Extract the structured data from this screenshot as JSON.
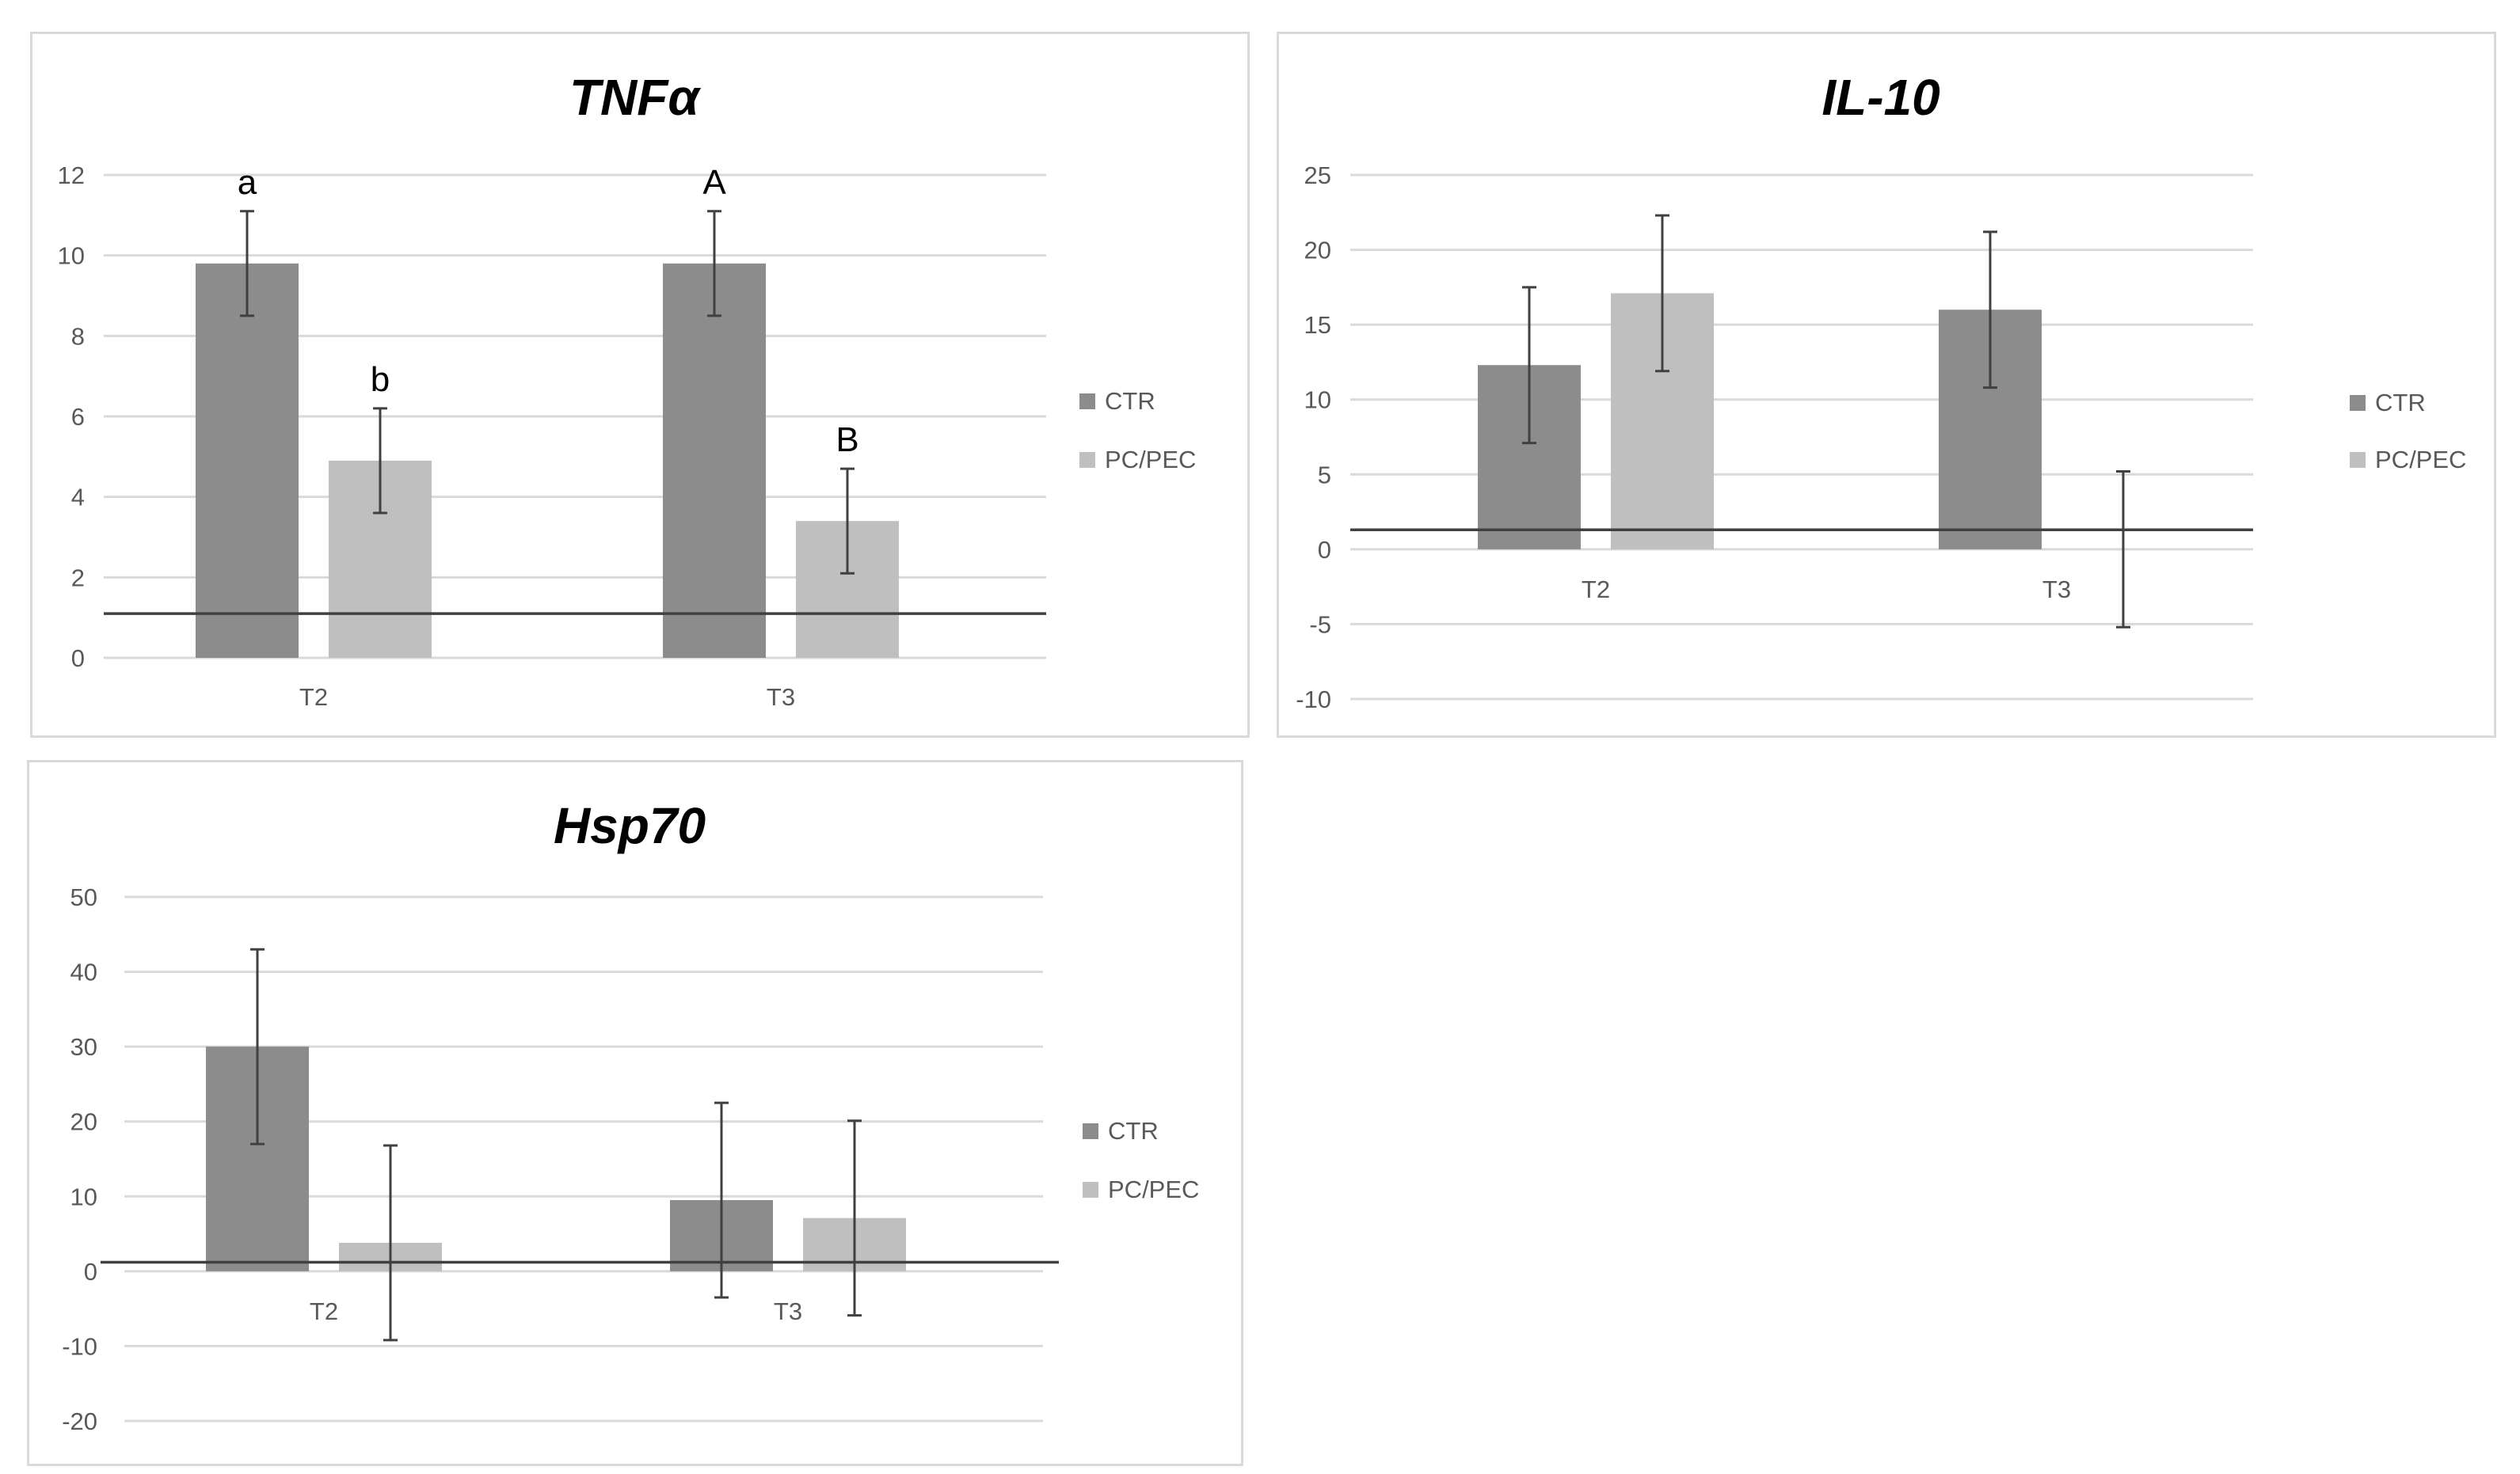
{
  "chart_data": [
    {
      "type": "bar",
      "title": "TNFα",
      "categories": [
        "T2",
        "T3"
      ],
      "series": [
        {
          "name": "CTR",
          "color": "#8c8c8c",
          "values": [
            9.8,
            9.8
          ],
          "errors": [
            1.3,
            1.3
          ]
        },
        {
          "name": "PC/PEC",
          "color": "#bfbfbf",
          "values": [
            4.9,
            3.4
          ],
          "errors": [
            1.3,
            1.3
          ]
        }
      ],
      "annotations": [
        [
          "a",
          "b"
        ],
        [
          "A",
          "B"
        ]
      ],
      "reference_line": 1.1,
      "ylim": [
        0,
        12
      ],
      "yticks": [
        "0",
        "2",
        "4",
        "6",
        "8",
        "10",
        "12"
      ],
      "xlabel": "",
      "ylabel": "",
      "legend": "right"
    },
    {
      "type": "bar",
      "title": "IL-10",
      "categories": [
        "T2",
        "T3"
      ],
      "series": [
        {
          "name": "CTR",
          "color": "#8c8c8c",
          "values": [
            12.3,
            16.0
          ],
          "errors": [
            5.2,
            5.2
          ]
        },
        {
          "name": "PC/PEC",
          "color": "#bfbfbf",
          "values": [
            17.1,
            0
          ],
          "errors": [
            5.2,
            5.2
          ]
        }
      ],
      "annotations": [
        [
          "",
          ""
        ],
        [
          "",
          ""
        ]
      ],
      "reference_line": 1.3,
      "ylim": [
        -10,
        25
      ],
      "yticks": [
        "-10",
        "-5",
        "0",
        "5",
        "10",
        "15",
        "20",
        "25"
      ],
      "xlabel": "",
      "ylabel": "",
      "legend": "right"
    },
    {
      "type": "bar",
      "title": "Hsp70",
      "categories": [
        "T2",
        "T3"
      ],
      "series": [
        {
          "name": "CTR",
          "color": "#8c8c8c",
          "values": [
            30.0,
            9.5
          ],
          "errors": [
            13,
            13
          ]
        },
        {
          "name": "PC/PEC",
          "color": "#bfbfbf",
          "values": [
            3.8,
            7.1
          ],
          "errors": [
            13,
            13
          ]
        }
      ],
      "annotations": [
        [
          "",
          ""
        ],
        [
          "",
          ""
        ]
      ],
      "reference_line": 1.2,
      "ylim": [
        -20,
        50
      ],
      "yticks": [
        "-20",
        "-10",
        "0",
        "10",
        "20",
        "30",
        "40",
        "50"
      ],
      "xlabel": "",
      "ylabel": "",
      "legend": "right"
    }
  ]
}
